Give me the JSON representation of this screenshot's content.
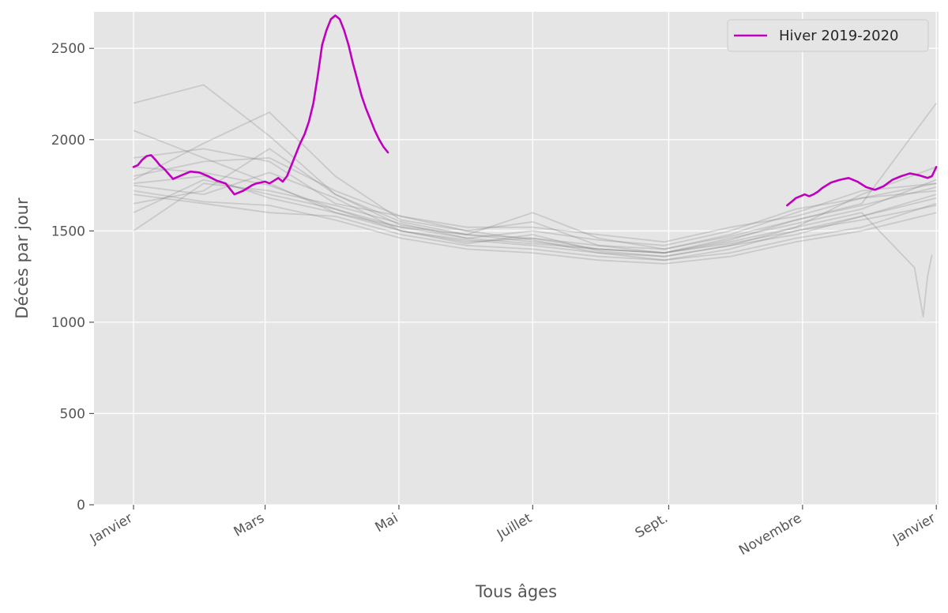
{
  "chart_data": {
    "type": "line",
    "title": "",
    "xlabel": "Tous âges",
    "ylabel": "Décès par jour",
    "ylim": [
      0,
      2700
    ],
    "xlim": [
      -10,
      375
    ],
    "grid": true,
    "legend_position": "top-right",
    "y_ticks": [
      {
        "value": 0,
        "label": "0"
      },
      {
        "value": 500,
        "label": "500"
      },
      {
        "value": 1000,
        "label": "1000"
      },
      {
        "value": 1500,
        "label": "1500"
      },
      {
        "value": 2000,
        "label": "2000"
      },
      {
        "value": 2500,
        "label": "2500"
      }
    ],
    "x_ticks": [
      {
        "value": 8,
        "label": "Janvier"
      },
      {
        "value": 68,
        "label": "Mars"
      },
      {
        "value": 129,
        "label": "Mai"
      },
      {
        "value": 190,
        "label": "Juillet"
      },
      {
        "value": 252,
        "label": "Sept."
      },
      {
        "value": 313,
        "label": "Novembre"
      },
      {
        "value": 374,
        "label": "Janvier"
      }
    ],
    "colors": {
      "highlight": "#bf00bf",
      "background_series": "#808080",
      "plot_bg": "#e5e5e5",
      "grid": "#ffffff"
    },
    "series": [
      {
        "name": "Hiver 2019-2020",
        "color": "#bf00bf",
        "segments": [
          {
            "x": [
              8,
              10,
              12,
              14,
              16,
              18,
              20,
              22,
              26,
              30,
              34,
              38,
              42,
              46,
              50,
              54,
              58,
              62,
              64,
              66,
              68,
              70,
              72,
              74,
              76,
              78,
              80,
              82,
              84,
              86,
              88,
              90,
              92,
              94,
              96,
              98,
              100,
              102,
              104,
              106,
              108,
              110,
              112,
              114,
              116,
              118,
              120,
              122,
              124
            ],
            "y": [
              1850,
              1860,
              1890,
              1910,
              1915,
              1890,
              1860,
              1840,
              1785,
              1805,
              1825,
              1820,
              1800,
              1775,
              1760,
              1700,
              1720,
              1750,
              1760,
              1765,
              1770,
              1760,
              1775,
              1790,
              1770,
              1800,
              1860,
              1920,
              1980,
              2030,
              2100,
              2200,
              2350,
              2520,
              2600,
              2660,
              2680,
              2660,
              2600,
              2520,
              2420,
              2330,
              2240,
              2170,
              2110,
              2050,
              2000,
              1960,
              1930
            ]
          },
          {
            "x": [
              306,
              308,
              310,
              312,
              314,
              316,
              318,
              320,
              322,
              326,
              330,
              334,
              338,
              342,
              346,
              350,
              354,
              358,
              362,
              366,
              370,
              372,
              374
            ],
            "y": [
              1640,
              1660,
              1680,
              1690,
              1700,
              1690,
              1700,
              1715,
              1735,
              1765,
              1780,
              1790,
              1770,
              1740,
              1725,
              1745,
              1780,
              1800,
              1815,
              1805,
              1790,
              1800,
              1850
            ]
          }
        ]
      },
      {
        "name": "",
        "color": "#808080",
        "x": [
          8,
          40,
          70,
          100,
          130,
          160,
          190,
          220,
          250,
          280,
          310,
          340,
          374
        ],
        "y": [
          2200,
          2300,
          2020,
          1700,
          1530,
          1480,
          1460,
          1400,
          1380,
          1450,
          1560,
          1650,
          2200
        ]
      },
      {
        "name": "",
        "color": "#808080",
        "x": [
          8,
          40,
          70,
          100,
          130,
          160,
          190,
          220,
          250,
          280,
          310,
          340,
          374
        ],
        "y": [
          1780,
          1980,
          2150,
          1800,
          1560,
          1500,
          1450,
          1380,
          1360,
          1420,
          1520,
          1700,
          1850
        ]
      },
      {
        "name": "",
        "color": "#808080",
        "x": [
          8,
          40,
          70,
          100,
          130,
          160,
          190,
          220,
          250,
          280,
          310,
          340,
          374
        ],
        "y": [
          1900,
          1950,
          1880,
          1650,
          1580,
          1500,
          1550,
          1420,
          1400,
          1480,
          1600,
          1720,
          1760
        ]
      },
      {
        "name": "",
        "color": "#808080",
        "x": [
          8,
          40,
          70,
          100,
          130,
          160,
          190,
          220,
          250,
          280,
          310,
          340,
          374
        ],
        "y": [
          1750,
          1700,
          1820,
          1680,
          1500,
          1450,
          1420,
          1380,
          1340,
          1400,
          1500,
          1580,
          1700
        ]
      },
      {
        "name": "",
        "color": "#808080",
        "x": [
          8,
          40,
          70,
          100,
          130,
          160,
          190,
          220,
          250,
          280,
          310,
          340,
          374
        ],
        "y": [
          1700,
          1650,
          1600,
          1580,
          1480,
          1420,
          1400,
          1360,
          1340,
          1380,
          1460,
          1520,
          1650
        ]
      },
      {
        "name": "",
        "color": "#808080",
        "x": [
          8,
          40,
          70,
          100,
          130,
          160,
          190,
          220,
          250,
          280,
          310,
          340,
          374
        ],
        "y": [
          1850,
          1820,
          1750,
          1620,
          1520,
          1460,
          1500,
          1450,
          1420,
          1500,
          1620,
          1680,
          1720
        ]
      },
      {
        "name": "",
        "color": "#808080",
        "x": [
          8,
          40,
          70,
          100,
          130,
          160,
          190,
          220,
          250,
          280,
          310,
          340,
          374
        ],
        "y": [
          1650,
          1720,
          1950,
          1700,
          1550,
          1480,
          1440,
          1400,
          1380,
          1460,
          1540,
          1620,
          1780
        ]
      },
      {
        "name": "",
        "color": "#808080",
        "x": [
          8,
          40,
          70,
          100,
          130,
          160,
          190,
          220,
          250,
          280,
          310,
          340,
          374
        ],
        "y": [
          1600,
          1780,
          1700,
          1620,
          1500,
          1430,
          1480,
          1390,
          1360,
          1420,
          1480,
          1580,
          1680
        ]
      },
      {
        "name": "",
        "color": "#808080",
        "x": [
          8,
          40,
          70,
          100,
          130,
          160,
          190,
          220,
          250,
          280,
          310,
          340,
          374
        ],
        "y": [
          2050,
          1900,
          1760,
          1600,
          1520,
          1480,
          1600,
          1460,
          1400,
          1470,
          1560,
          1640,
          1740
        ]
      },
      {
        "name": "",
        "color": "#808080",
        "x": [
          8,
          40,
          70,
          100,
          130,
          160,
          190,
          220,
          250,
          280,
          310,
          340,
          374
        ],
        "y": [
          1720,
          1660,
          1640,
          1560,
          1460,
          1400,
          1380,
          1340,
          1320,
          1360,
          1440,
          1500,
          1600
        ]
      },
      {
        "name": "",
        "color": "#808080",
        "x": [
          8,
          40,
          70,
          100,
          130,
          160,
          190,
          220,
          250,
          280,
          310,
          340,
          374
        ],
        "y": [
          1800,
          1880,
          1900,
          1720,
          1580,
          1520,
          1520,
          1480,
          1440,
          1520,
          1580,
          1680,
          1760
        ]
      },
      {
        "name": "",
        "color": "#808080",
        "x": [
          8,
          40,
          70,
          100,
          130,
          160,
          190,
          220,
          250,
          280,
          310,
          340,
          364,
          368,
          370,
          372
        ],
        "y": [
          1500,
          1760,
          1720,
          1640,
          1540,
          1460,
          1430,
          1400,
          1380,
          1440,
          1520,
          1600,
          1300,
          1030,
          1250,
          1370
        ]
      },
      {
        "name": "",
        "color": "#808080",
        "x": [
          8,
          40,
          70,
          100,
          130,
          160,
          190,
          220,
          250,
          280,
          310,
          340,
          374
        ],
        "y": [
          1760,
          1800,
          1680,
          1600,
          1500,
          1440,
          1460,
          1420,
          1380,
          1430,
          1500,
          1560,
          1640
        ]
      }
    ]
  }
}
